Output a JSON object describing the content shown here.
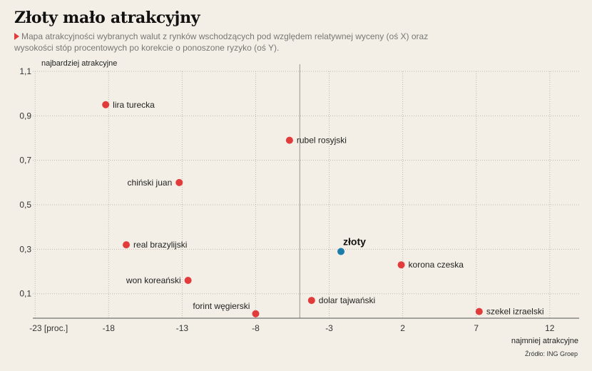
{
  "title": "Złoty mało atrakcyjny",
  "subtitle": "Mapa atrakcyjności wybranych walut z rynków wschodzących pod względem relatywnej wyceny (oś X) oraz wysokości stóp procentowych po korekcie o ponoszone ryzyko (oś Y).",
  "source": "Źródło: ING Groep",
  "chart_data": {
    "type": "scatter",
    "title": "Złoty mało atrakcyjny",
    "ylabel": "najbardziej atrakcyjne",
    "xlabel": "najmniej atrakcyjne",
    "xlim": [
      -25,
      14
    ],
    "ylim": [
      -0.01,
      1.1
    ],
    "x_ticks": [
      -23,
      -18,
      -13,
      -8,
      -3,
      2,
      7,
      12
    ],
    "x_tick_labels": [
      "-23 [proc.]",
      "-18",
      "-13",
      "-8",
      "-3",
      "2",
      "7",
      "12"
    ],
    "y_ticks": [
      0.1,
      0.3,
      0.5,
      0.7,
      0.9,
      1.1
    ],
    "y_tick_labels": [
      "0,1",
      "0,3",
      "0,5",
      "0,7",
      "0,9",
      "1,1"
    ],
    "grid": true,
    "reference_x": -5,
    "colors": {
      "default": "#e23b3b",
      "highlight": "#1b7bab"
    },
    "points": [
      {
        "label": "lira turecka",
        "x": -18.2,
        "y": 0.95,
        "label_pos": "right"
      },
      {
        "label": "rubel rosyjski",
        "x": -5.7,
        "y": 0.79,
        "label_pos": "right"
      },
      {
        "label": "chiński juan",
        "x": -13.2,
        "y": 0.6,
        "label_pos": "left"
      },
      {
        "label": "real brazylijski",
        "x": -16.8,
        "y": 0.32,
        "label_pos": "right"
      },
      {
        "label": "złoty",
        "x": -2.2,
        "y": 0.29,
        "label_pos": "above",
        "highlight": true
      },
      {
        "label": "korona czeska",
        "x": 1.9,
        "y": 0.23,
        "label_pos": "right"
      },
      {
        "label": "won koreański",
        "x": -12.6,
        "y": 0.16,
        "label_pos": "left"
      },
      {
        "label": "dolar tajwański",
        "x": -4.2,
        "y": 0.07,
        "label_pos": "right"
      },
      {
        "label": "forint węgierski",
        "x": -8.0,
        "y": 0.01,
        "label_pos": "above-left"
      },
      {
        "label": "szekel izraelski",
        "x": 7.2,
        "y": 0.02,
        "label_pos": "right"
      }
    ]
  }
}
